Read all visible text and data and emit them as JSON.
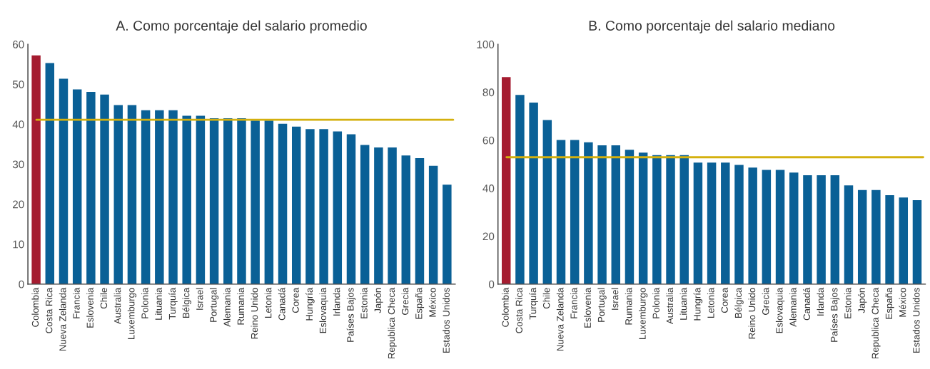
{
  "chart_data": [
    {
      "type": "bar",
      "title": "A. Como porcentaje del salario promedio",
      "categories": [
        "Colombia",
        "Costa Rica",
        "Nueva Zelanda",
        "Francia",
        "Eslovenia",
        "Chile",
        "Australia",
        "Luxemburgo",
        "Polonia",
        "Lituania",
        "Turquía",
        "Bélgica",
        "Israel",
        "Portugal",
        "Alemania",
        "Rumania",
        "Reino Unido",
        "Letonia",
        "Canadá",
        "Corea",
        "Hungría",
        "Eslovaquia",
        "Irlanda",
        "Países Bajos",
        "Estonia",
        "Japón",
        "Republica Checa",
        "Grecia",
        "España",
        "México",
        "Estados Unidos"
      ],
      "values": [
        57.2,
        55.3,
        51.4,
        48.7,
        48.1,
        47.4,
        44.8,
        44.8,
        43.5,
        43.5,
        43.5,
        42.1,
        42.1,
        41.5,
        41.5,
        41.5,
        40.9,
        40.9,
        40.1,
        39.4,
        38.8,
        38.8,
        38.2,
        37.5,
        34.8,
        34.2,
        34.2,
        32.2,
        31.5,
        29.6,
        24.9
      ],
      "colors": [
        "#a51c30",
        "#0a6096",
        "#0a6096",
        "#0a6096",
        "#0a6096",
        "#0a6096",
        "#0a6096",
        "#0a6096",
        "#0a6096",
        "#0a6096",
        "#0a6096",
        "#0a6096",
        "#0a6096",
        "#0a6096",
        "#0a6096",
        "#0a6096",
        "#0a6096",
        "#0a6096",
        "#0a6096",
        "#0a6096",
        "#0a6096",
        "#0a6096",
        "#0a6096",
        "#0a6096",
        "#0a6096",
        "#0a6096",
        "#0a6096",
        "#0a6096",
        "#0a6096",
        "#0a6096",
        "#0a6096"
      ],
      "ylim": [
        0,
        60
      ],
      "yticks": [
        0,
        10,
        20,
        30,
        40,
        50,
        60
      ],
      "ref_lines": [
        {
          "axis": "y",
          "value": 41.1,
          "color": "#d4b00e"
        }
      ]
    },
    {
      "type": "bar",
      "title": "B. Como porcentaje del salario mediano",
      "categories": [
        "Colombia",
        "Costa Rica",
        "Turquía",
        "Chile",
        "Nueva Zelanda",
        "Francia",
        "Eslovenia",
        "Portugal",
        "Israel",
        "Rumania",
        "Luxemburgo",
        "Polonia",
        "Australia",
        "Lituania",
        "Hungría",
        "Letonia",
        "Corea",
        "Bélgica",
        "Reino Unido",
        "Grecia",
        "Eslovaquia",
        "Alemania",
        "Canadá",
        "Irlanda",
        "Países Bajos",
        "Estonia",
        "Japón",
        "Republica Checa",
        "España",
        "México",
        "Estados Unidos"
      ],
      "values": [
        86.3,
        78.9,
        75.7,
        68.4,
        60.1,
        60.1,
        59.1,
        57.9,
        57.9,
        56.0,
        54.8,
        53.8,
        53.8,
        53.8,
        50.7,
        50.7,
        50.7,
        49.7,
        48.6,
        47.6,
        47.6,
        46.5,
        45.4,
        45.4,
        45.4,
        41.2,
        39.2,
        39.2,
        37.1,
        36.1,
        35.0
      ],
      "colors": [
        "#a51c30",
        "#0a6096",
        "#0a6096",
        "#0a6096",
        "#0a6096",
        "#0a6096",
        "#0a6096",
        "#0a6096",
        "#0a6096",
        "#0a6096",
        "#0a6096",
        "#0a6096",
        "#0a6096",
        "#0a6096",
        "#0a6096",
        "#0a6096",
        "#0a6096",
        "#0a6096",
        "#0a6096",
        "#0a6096",
        "#0a6096",
        "#0a6096",
        "#0a6096",
        "#0a6096",
        "#0a6096",
        "#0a6096",
        "#0a6096",
        "#0a6096",
        "#0a6096",
        "#0a6096",
        "#0a6096"
      ],
      "ylim": [
        0,
        100
      ],
      "yticks": [
        0,
        20,
        40,
        60,
        80,
        100
      ],
      "ref_lines": [
        {
          "axis": "y",
          "value": 52.9,
          "color": "#d4b00e"
        }
      ]
    }
  ]
}
